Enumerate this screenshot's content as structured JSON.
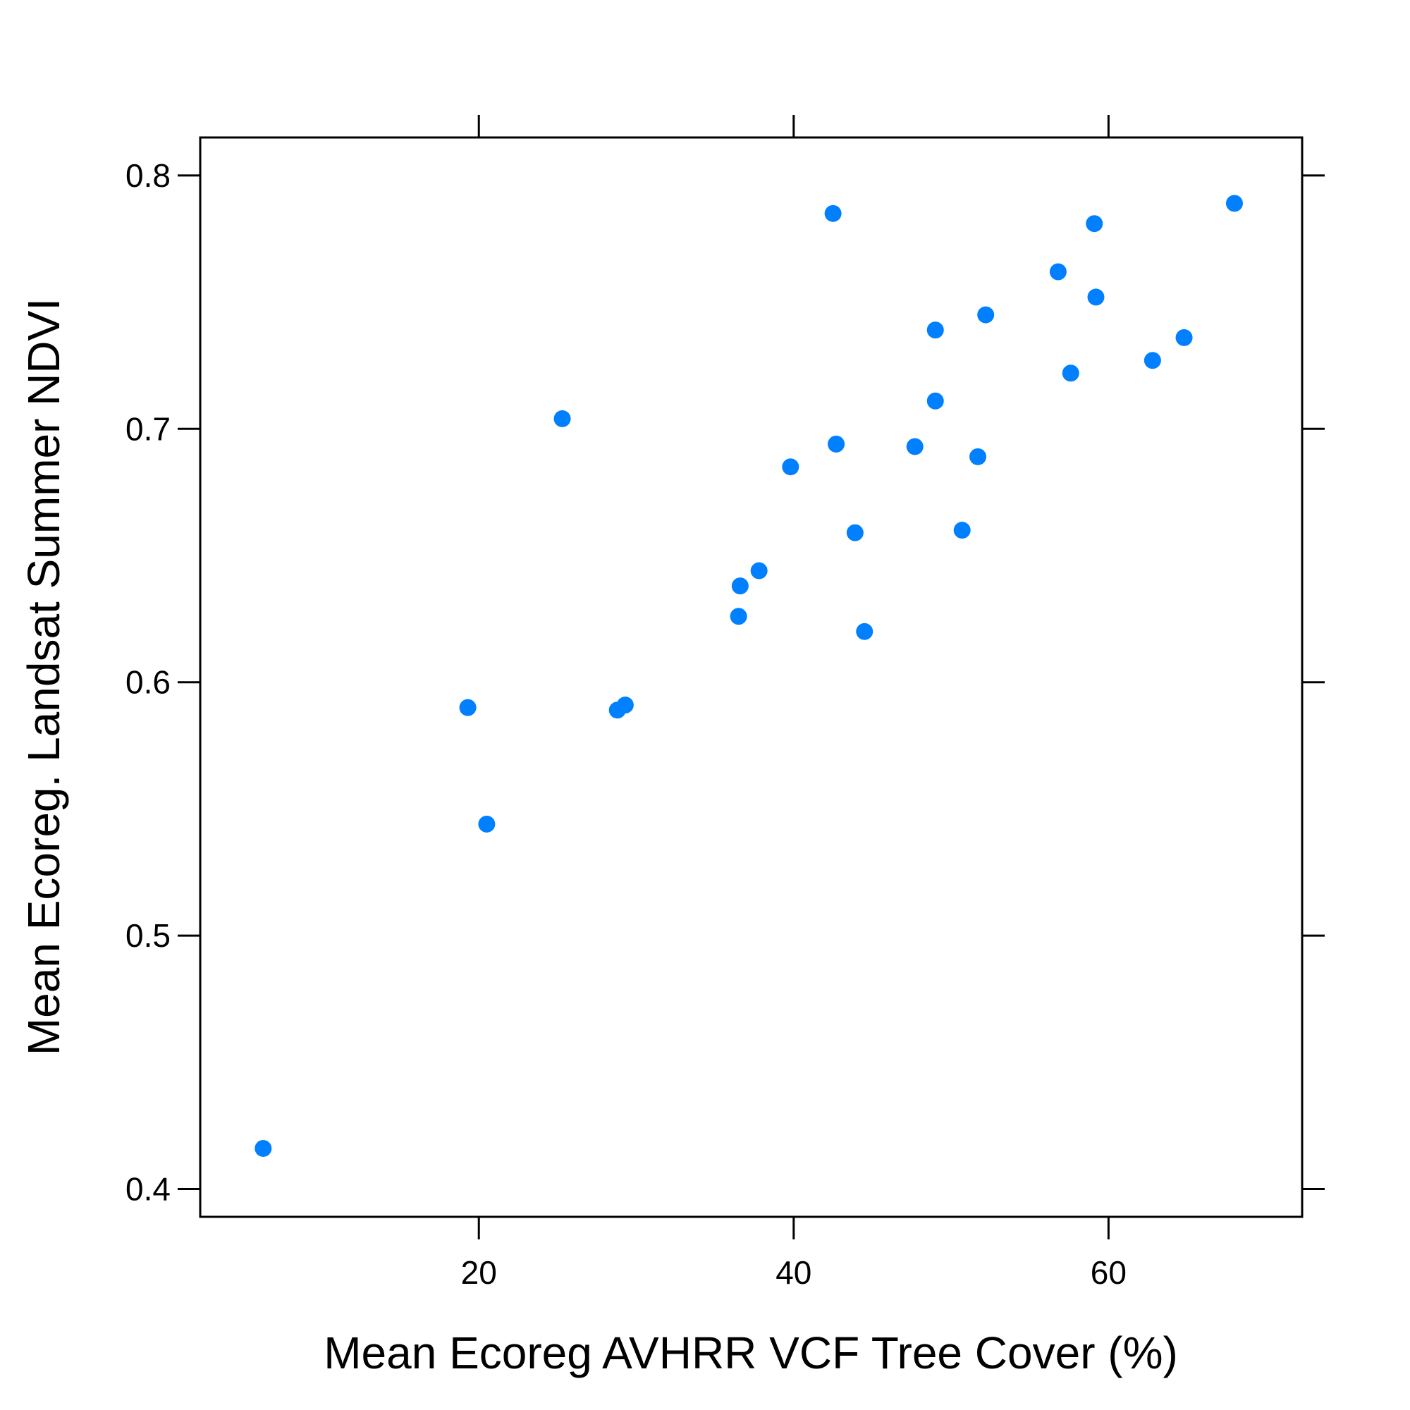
{
  "chart_data": {
    "type": "scatter",
    "xlabel": "Mean Ecoreg AVHRR VCF Tree Cover (%)",
    "ylabel": "Mean Ecoreg. Landsat Summer NDVI",
    "xlim": [
      2.3,
      72.3
    ],
    "ylim": [
      0.389,
      0.815
    ],
    "x_ticks": [
      20,
      40,
      60
    ],
    "x_tick_labels": [
      "20",
      "40",
      "60"
    ],
    "y_ticks": [
      0.4,
      0.5,
      0.6,
      0.7,
      0.8
    ],
    "y_tick_labels": [
      "0.4",
      "0.5",
      "0.6",
      "0.7",
      "0.8"
    ],
    "grid": false,
    "marker_color": "#0080ff",
    "points": [
      {
        "x": 6.3,
        "y": 0.416
      },
      {
        "x": 19.3,
        "y": 0.59
      },
      {
        "x": 20.5,
        "y": 0.544
      },
      {
        "x": 25.3,
        "y": 0.704
      },
      {
        "x": 28.8,
        "y": 0.589
      },
      {
        "x": 29.3,
        "y": 0.591
      },
      {
        "x": 36.5,
        "y": 0.626
      },
      {
        "x": 36.6,
        "y": 0.638
      },
      {
        "x": 37.8,
        "y": 0.644
      },
      {
        "x": 39.8,
        "y": 0.685
      },
      {
        "x": 42.5,
        "y": 0.785
      },
      {
        "x": 42.7,
        "y": 0.694
      },
      {
        "x": 43.9,
        "y": 0.659
      },
      {
        "x": 44.5,
        "y": 0.62
      },
      {
        "x": 47.7,
        "y": 0.693
      },
      {
        "x": 49.0,
        "y": 0.739
      },
      {
        "x": 49.0,
        "y": 0.711
      },
      {
        "x": 50.7,
        "y": 0.66
      },
      {
        "x": 51.7,
        "y": 0.689
      },
      {
        "x": 52.2,
        "y": 0.745
      },
      {
        "x": 56.8,
        "y": 0.762
      },
      {
        "x": 57.6,
        "y": 0.722
      },
      {
        "x": 59.1,
        "y": 0.781
      },
      {
        "x": 59.2,
        "y": 0.752
      },
      {
        "x": 62.8,
        "y": 0.727
      },
      {
        "x": 64.8,
        "y": 0.736
      },
      {
        "x": 68.0,
        "y": 0.789
      }
    ]
  }
}
